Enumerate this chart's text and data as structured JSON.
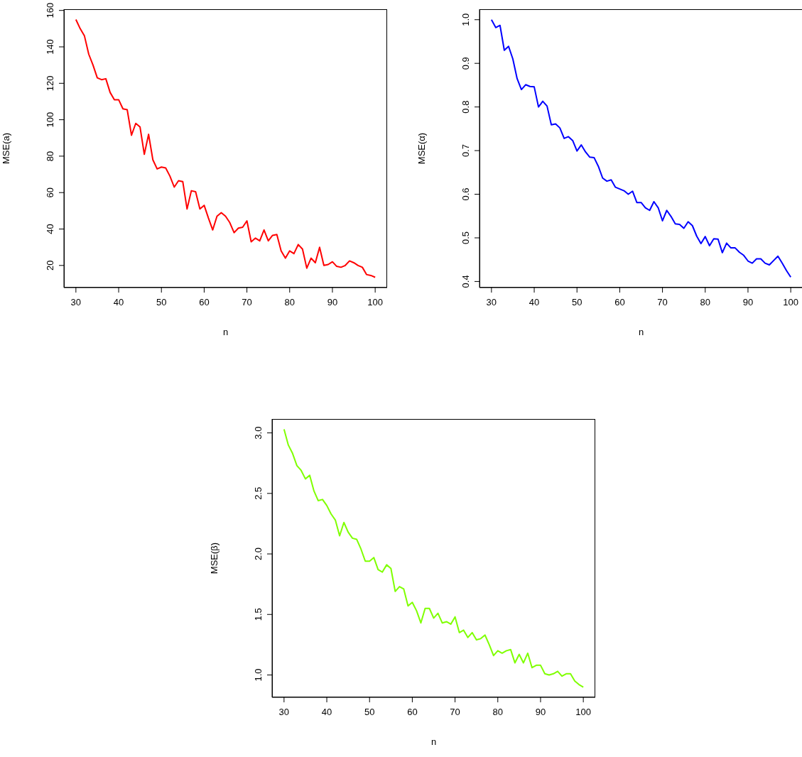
{
  "chart_data": [
    {
      "type": "line",
      "xlabel": "n",
      "ylabel": "MSE(a)",
      "x": [
        30,
        31,
        32,
        33,
        34,
        35,
        36,
        37,
        38,
        39,
        40,
        41,
        42,
        43,
        44,
        45,
        46,
        47,
        48,
        49,
        50,
        51,
        52,
        53,
        54,
        55,
        56,
        57,
        58,
        59,
        60,
        61,
        62,
        63,
        64,
        65,
        66,
        67,
        68,
        69,
        70,
        71,
        72,
        73,
        74,
        75,
        76,
        77,
        78,
        79,
        80,
        81,
        82,
        83,
        84,
        85,
        86,
        87,
        88,
        89,
        90,
        91,
        92,
        93,
        94,
        95,
        96,
        97,
        98,
        99,
        100
      ],
      "xlim": [
        27.2,
        102.8
      ],
      "xticks": [
        30,
        40,
        50,
        60,
        70,
        80,
        90,
        100
      ],
      "ylim": [
        7.84,
        160.66
      ],
      "yticks": [
        20,
        40,
        60,
        80,
        100,
        120,
        140,
        160
      ],
      "series": [
        {
          "color": "#ff0000",
          "values": [
            155,
            150,
            146,
            136,
            130,
            123,
            122,
            122.5,
            115,
            111,
            111,
            106,
            105.5,
            91.5,
            98,
            96,
            81,
            92,
            78,
            73,
            74,
            73.5,
            69,
            63,
            66.5,
            66,
            51,
            61,
            60.5,
            51,
            53,
            46,
            39.5,
            47,
            49,
            47,
            43.5,
            38,
            40.5,
            41,
            44.5,
            33,
            35,
            33.5,
            39.5,
            33.5,
            36.5,
            37,
            28,
            24,
            28,
            26.5,
            31.5,
            29,
            18.5,
            24,
            21.5,
            30,
            20,
            20.5,
            22,
            19.5,
            19,
            20,
            22.5,
            21.5,
            20,
            19,
            15,
            14.5,
            13.5
          ]
        }
      ]
    },
    {
      "type": "line",
      "xlabel": "n",
      "ylabel": "MSE(α)",
      "x": [
        30,
        31,
        32,
        33,
        34,
        35,
        36,
        37,
        38,
        39,
        40,
        41,
        42,
        43,
        44,
        45,
        46,
        47,
        48,
        49,
        50,
        51,
        52,
        53,
        54,
        55,
        56,
        57,
        58,
        59,
        60,
        61,
        62,
        63,
        64,
        65,
        66,
        67,
        68,
        69,
        70,
        71,
        72,
        73,
        74,
        75,
        76,
        77,
        78,
        79,
        80,
        81,
        82,
        83,
        84,
        85,
        86,
        87,
        88,
        89,
        90,
        91,
        92,
        93,
        94,
        95,
        96,
        97,
        98,
        99,
        100
      ],
      "xlim": [
        27.2,
        102.8
      ],
      "xticks": [
        30,
        40,
        50,
        60,
        70,
        80,
        90,
        100
      ],
      "ylim": [
        0.386,
        1.024
      ],
      "yticks": [
        0.4,
        0.5,
        0.6,
        0.7,
        0.8,
        0.9,
        {
          "value": 1.0,
          "label": "1.0"
        }
      ],
      "series": [
        {
          "color": "#0000ff",
          "values": [
            1.0,
            0.982,
            0.987,
            0.93,
            0.939,
            0.91,
            0.865,
            0.84,
            0.851,
            0.847,
            0.846,
            0.8,
            0.813,
            0.802,
            0.759,
            0.761,
            0.752,
            0.728,
            0.732,
            0.723,
            0.699,
            0.713,
            0.697,
            0.685,
            0.684,
            0.664,
            0.637,
            0.63,
            0.633,
            0.616,
            0.612,
            0.608,
            0.6,
            0.607,
            0.581,
            0.581,
            0.569,
            0.563,
            0.583,
            0.569,
            0.539,
            0.563,
            0.549,
            0.532,
            0.531,
            0.522,
            0.537,
            0.528,
            0.504,
            0.487,
            0.503,
            0.482,
            0.498,
            0.497,
            0.466,
            0.488,
            0.477,
            0.477,
            0.467,
            0.46,
            0.447,
            0.442,
            0.452,
            0.452,
            0.442,
            0.438,
            0.448,
            0.458,
            0.442,
            0.425,
            0.41
          ]
        }
      ]
    },
    {
      "type": "line",
      "xlabel": "n",
      "ylabel": "MSE(β)",
      "x": [
        30,
        31,
        32,
        33,
        34,
        35,
        36,
        37,
        38,
        39,
        40,
        41,
        42,
        43,
        44,
        45,
        46,
        47,
        48,
        49,
        50,
        51,
        52,
        53,
        54,
        55,
        56,
        57,
        58,
        59,
        60,
        61,
        62,
        63,
        64,
        65,
        66,
        67,
        68,
        69,
        70,
        71,
        72,
        73,
        74,
        75,
        76,
        77,
        78,
        79,
        80,
        81,
        82,
        83,
        84,
        85,
        86,
        87,
        88,
        89,
        90,
        91,
        92,
        93,
        94,
        95,
        96,
        97,
        98,
        99,
        100
      ],
      "xlim": [
        27.2,
        102.8
      ],
      "xticks": [
        30,
        40,
        50,
        60,
        70,
        80,
        90,
        100
      ],
      "ylim": [
        0.815,
        3.115
      ],
      "yticks": [
        {
          "value": 1.0,
          "label": "1.0"
        },
        1.5,
        {
          "value": 2.0,
          "label": "2.0"
        },
        2.5,
        {
          "value": 3.0,
          "label": "3.0"
        }
      ],
      "series": [
        {
          "color": "#7fff00",
          "values": [
            3.03,
            2.9,
            2.83,
            2.73,
            2.69,
            2.62,
            2.65,
            2.52,
            2.44,
            2.45,
            2.4,
            2.33,
            2.28,
            2.15,
            2.26,
            2.18,
            2.13,
            2.12,
            2.04,
            1.94,
            1.94,
            1.97,
            1.87,
            1.85,
            1.91,
            1.88,
            1.69,
            1.73,
            1.71,
            1.57,
            1.6,
            1.53,
            1.43,
            1.55,
            1.55,
            1.47,
            1.51,
            1.43,
            1.44,
            1.42,
            1.48,
            1.35,
            1.37,
            1.31,
            1.35,
            1.29,
            1.3,
            1.33,
            1.25,
            1.16,
            1.2,
            1.18,
            1.2,
            1.21,
            1.1,
            1.17,
            1.1,
            1.18,
            1.06,
            1.08,
            1.08,
            1.01,
            1.0,
            1.01,
            1.03,
            0.99,
            1.01,
            1.01,
            0.95,
            0.92,
            0.9
          ]
        }
      ]
    }
  ]
}
